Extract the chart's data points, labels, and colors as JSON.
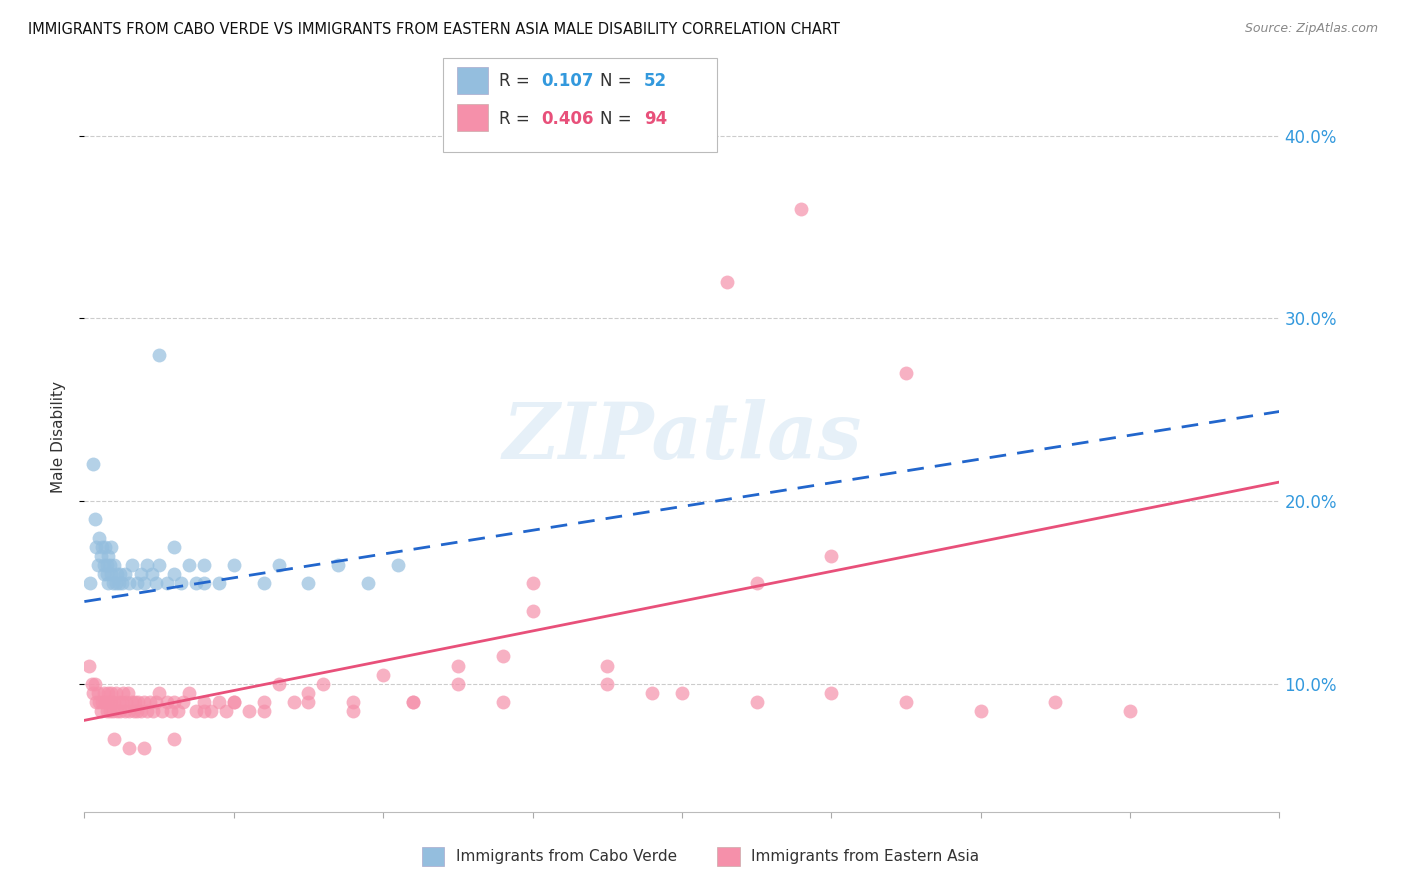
{
  "title": "IMMIGRANTS FROM CABO VERDE VS IMMIGRANTS FROM EASTERN ASIA MALE DISABILITY CORRELATION CHART",
  "source": "Source: ZipAtlas.com",
  "ylabel": "Male Disability",
  "xmin": 0.0,
  "xmax": 0.8,
  "ymin": 0.03,
  "ymax": 0.44,
  "ytick_values": [
    0.1,
    0.2,
    0.3,
    0.4
  ],
  "ytick_labels": [
    "10.0%",
    "20.0%",
    "30.0%",
    "40.0%"
  ],
  "legend_R_values": [
    "0.107",
    "0.406"
  ],
  "legend_N_values": [
    "52",
    "94"
  ],
  "cabo_verde_color": "#94bede",
  "eastern_asia_color": "#f590aa",
  "cabo_verde_line_color": "#2266cc",
  "eastern_asia_line_color": "#e8507a",
  "watermark": "ZIPatlas",
  "cabo_verde_x": [
    0.004,
    0.006,
    0.007,
    0.008,
    0.009,
    0.01,
    0.011,
    0.012,
    0.013,
    0.013,
    0.014,
    0.015,
    0.015,
    0.016,
    0.016,
    0.017,
    0.018,
    0.018,
    0.019,
    0.02,
    0.021,
    0.022,
    0.023,
    0.024,
    0.025,
    0.027,
    0.03,
    0.032,
    0.035,
    0.038,
    0.04,
    0.042,
    0.045,
    0.048,
    0.05,
    0.055,
    0.06,
    0.065,
    0.07,
    0.075,
    0.08,
    0.09,
    0.1,
    0.12,
    0.13,
    0.15,
    0.17,
    0.19,
    0.21,
    0.05,
    0.08,
    0.06
  ],
  "cabo_verde_y": [
    0.155,
    0.22,
    0.19,
    0.175,
    0.165,
    0.18,
    0.17,
    0.175,
    0.165,
    0.16,
    0.175,
    0.16,
    0.165,
    0.17,
    0.155,
    0.165,
    0.16,
    0.175,
    0.155,
    0.165,
    0.155,
    0.16,
    0.155,
    0.16,
    0.155,
    0.16,
    0.155,
    0.165,
    0.155,
    0.16,
    0.155,
    0.165,
    0.16,
    0.155,
    0.165,
    0.155,
    0.16,
    0.155,
    0.165,
    0.155,
    0.165,
    0.155,
    0.165,
    0.155,
    0.165,
    0.155,
    0.165,
    0.155,
    0.165,
    0.28,
    0.155,
    0.175
  ],
  "eastern_asia_x": [
    0.003,
    0.005,
    0.006,
    0.007,
    0.008,
    0.009,
    0.01,
    0.011,
    0.012,
    0.013,
    0.014,
    0.015,
    0.016,
    0.016,
    0.017,
    0.018,
    0.018,
    0.019,
    0.02,
    0.021,
    0.022,
    0.023,
    0.024,
    0.025,
    0.026,
    0.027,
    0.028,
    0.029,
    0.03,
    0.032,
    0.033,
    0.034,
    0.035,
    0.036,
    0.038,
    0.04,
    0.042,
    0.044,
    0.046,
    0.048,
    0.05,
    0.052,
    0.055,
    0.058,
    0.06,
    0.063,
    0.066,
    0.07,
    0.075,
    0.08,
    0.085,
    0.09,
    0.095,
    0.1,
    0.11,
    0.12,
    0.13,
    0.14,
    0.15,
    0.16,
    0.18,
    0.2,
    0.22,
    0.25,
    0.28,
    0.3,
    0.35,
    0.4,
    0.45,
    0.5,
    0.55,
    0.6,
    0.65,
    0.7,
    0.5,
    0.45,
    0.38,
    0.35,
    0.3,
    0.28,
    0.25,
    0.22,
    0.18,
    0.15,
    0.12,
    0.1,
    0.08,
    0.06,
    0.04,
    0.03,
    0.02,
    0.43,
    0.48,
    0.55
  ],
  "eastern_asia_y": [
    0.11,
    0.1,
    0.095,
    0.1,
    0.09,
    0.095,
    0.09,
    0.085,
    0.09,
    0.095,
    0.09,
    0.085,
    0.09,
    0.095,
    0.085,
    0.09,
    0.095,
    0.085,
    0.09,
    0.095,
    0.085,
    0.09,
    0.085,
    0.09,
    0.095,
    0.085,
    0.09,
    0.095,
    0.085,
    0.09,
    0.085,
    0.09,
    0.085,
    0.09,
    0.085,
    0.09,
    0.085,
    0.09,
    0.085,
    0.09,
    0.095,
    0.085,
    0.09,
    0.085,
    0.09,
    0.085,
    0.09,
    0.095,
    0.085,
    0.09,
    0.085,
    0.09,
    0.085,
    0.09,
    0.085,
    0.09,
    0.1,
    0.09,
    0.095,
    0.1,
    0.09,
    0.105,
    0.09,
    0.1,
    0.09,
    0.155,
    0.11,
    0.095,
    0.09,
    0.095,
    0.09,
    0.085,
    0.09,
    0.085,
    0.17,
    0.155,
    0.095,
    0.1,
    0.14,
    0.115,
    0.11,
    0.09,
    0.085,
    0.09,
    0.085,
    0.09,
    0.085,
    0.07,
    0.065,
    0.065,
    0.07,
    0.32,
    0.36,
    0.27
  ]
}
